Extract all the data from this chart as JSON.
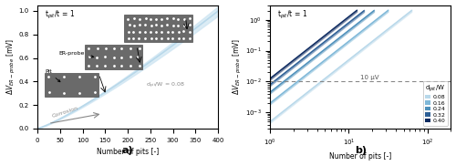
{
  "fig_width": 5.0,
  "fig_height": 1.82,
  "dpi": 100,
  "subplot_a": {
    "xlim": [
      0,
      400
    ],
    "ylim": [
      0,
      1.05
    ],
    "xlabel": "Number of pits [-]",
    "annotation": "t$_{pit}$/t = 1",
    "d_label": "d$_{pit}$/W = 0.08",
    "corrosion_label": "Corrosion",
    "sublabel": "a)",
    "curve_color": "#b8d8ea",
    "shade_color": "#cce4f2"
  },
  "subplot_b": {
    "xlabel": "Number of pits [-]",
    "annotation": "t$_{pit}$/t = 1",
    "dashed_line_y": 0.01,
    "dashed_label": "10 µV",
    "sublabel": "b)",
    "legend_title": "d$_{pit}$/W",
    "ratios": [
      0.08,
      0.16,
      0.24,
      0.32,
      0.4
    ],
    "colors": [
      "#b8d8ea",
      "#7fb8d8",
      "#4e90bb",
      "#2d5f96",
      "#0d2a60"
    ],
    "ratio_labels": [
      "0.08",
      "0.16",
      "0.24",
      "0.32",
      "0.40"
    ]
  }
}
